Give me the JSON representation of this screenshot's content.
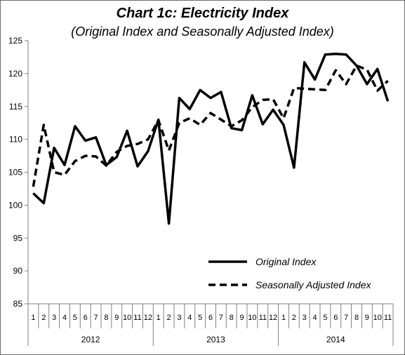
{
  "chart_data": {
    "type": "line",
    "title": "Chart 1c: Electricity Index",
    "subtitle": "(Original Index and Seasonally Adjusted Index)",
    "xlabel": "",
    "ylabel": "",
    "ylim": [
      85,
      125
    ],
    "yticks": [
      85,
      90,
      95,
      100,
      105,
      110,
      115,
      120,
      125
    ],
    "years": [
      {
        "label": "2012",
        "months": [
          "1",
          "2",
          "3",
          "4",
          "5",
          "6",
          "7",
          "8",
          "9",
          "10",
          "11",
          "12"
        ]
      },
      {
        "label": "2013",
        "months": [
          "1",
          "2",
          "3",
          "4",
          "5",
          "6",
          "7",
          "8",
          "9",
          "10",
          "11",
          "12"
        ]
      },
      {
        "label": "2014",
        "months": [
          "1",
          "2",
          "3",
          "4",
          "5",
          "6",
          "7",
          "8",
          "9",
          "10",
          "11"
        ]
      }
    ],
    "series": [
      {
        "name": "Original Index",
        "style": "solid",
        "color": "#000000",
        "values": [
          101.8,
          100.3,
          108.7,
          106.1,
          112.0,
          109.8,
          110.3,
          106.1,
          107.3,
          111.3,
          105.9,
          108.2,
          113.0,
          97.2,
          116.3,
          114.6,
          117.5,
          116.3,
          117.2,
          111.7,
          111.4,
          116.7,
          112.3,
          114.5,
          112.2,
          105.7,
          121.7,
          119.1,
          122.9,
          123.0,
          122.9,
          121.2,
          118.4,
          120.7,
          115.8
        ]
      },
      {
        "name": "Seasonally Adjusted Index",
        "style": "dashed",
        "color": "#000000",
        "values": [
          102.8,
          112.2,
          105.0,
          104.6,
          106.7,
          107.5,
          107.4,
          106.0,
          108.1,
          109.0,
          109.3,
          110.0,
          112.9,
          108.3,
          112.5,
          113.2,
          112.2,
          114.0,
          113.0,
          112.0,
          112.9,
          114.9,
          116.0,
          116.1,
          113.2,
          117.8,
          117.7,
          117.6,
          117.5,
          120.5,
          118.4,
          121.2,
          120.6,
          117.4,
          118.9
        ]
      }
    ],
    "legend": {
      "placement": "bottom-right"
    },
    "grid": false
  }
}
